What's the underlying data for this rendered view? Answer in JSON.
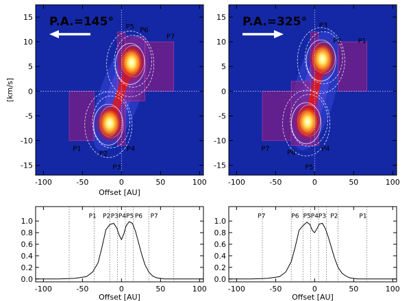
{
  "chart_data": [
    {
      "type": "heatmap",
      "title": "P.A.=145°",
      "arrow_direction": "left",
      "xlabel": "Offset [AU]",
      "ylabel": "[km/s]",
      "xlim": [
        -110,
        105
      ],
      "ylim": [
        -17,
        17.5
      ],
      "xticks": [
        -100,
        -50,
        0,
        50,
        100
      ],
      "yticks": [
        -15,
        -10,
        -5,
        0,
        5,
        10,
        15
      ],
      "peaks": [
        {
          "x": -15,
          "y": -6.5,
          "intensity": 1.0
        },
        {
          "x": 13,
          "y": 5.8,
          "intensity": 1.0
        }
      ],
      "regions": [
        {
          "x0": -67,
          "x1": -35,
          "y0": -10,
          "y1": 0
        },
        {
          "x0": -5,
          "x1": 5,
          "y0": -11,
          "y1": 12
        },
        {
          "x0": 5,
          "x1": 30,
          "y0": -2,
          "y1": 11
        },
        {
          "x0": 30,
          "x1": 67,
          "y0": 0,
          "y1": 10
        }
      ],
      "region_labels": [
        {
          "text": "P1",
          "x": -57,
          "y": -11.5
        },
        {
          "text": "P2",
          "x": -23,
          "y": -12.5
        },
        {
          "text": "P3",
          "x": -6,
          "y": -15.3
        },
        {
          "text": "P4",
          "x": 12,
          "y": -11.5
        },
        {
          "text": "P5",
          "x": 11,
          "y": 13.2
        },
        {
          "text": "P6",
          "x": 29,
          "y": 12.5
        },
        {
          "text": "P7",
          "x": 63,
          "y": 11.2
        }
      ]
    },
    {
      "type": "heatmap",
      "title": "P.A.=325°",
      "arrow_direction": "right",
      "xlabel": "",
      "ylabel": "",
      "xlim": [
        -110,
        105
      ],
      "ylim": [
        -17,
        17.5
      ],
      "xticks": [
        -100,
        -50,
        0,
        50,
        100
      ],
      "yticks": [
        -15,
        -10,
        -5,
        0,
        5,
        10,
        15
      ],
      "peaks": [
        {
          "x": -9,
          "y": -6.2,
          "intensity": 0.95
        },
        {
          "x": 10,
          "y": 6.5,
          "intensity": 1.0
        }
      ],
      "regions": [
        {
          "x0": -67,
          "x1": -30,
          "y0": -10,
          "y1": 0
        },
        {
          "x0": -30,
          "x1": -5,
          "y0": -11,
          "y1": 2
        },
        {
          "x0": -5,
          "x1": 5,
          "y0": -11,
          "y1": 12
        },
        {
          "x0": 30,
          "x1": 67,
          "y0": 0,
          "y1": 10
        }
      ],
      "region_labels": [
        {
          "text": "P7",
          "x": -63,
          "y": -11.5
        },
        {
          "text": "P6",
          "x": -30,
          "y": -12.3
        },
        {
          "text": "P5",
          "x": -7,
          "y": -15.3
        },
        {
          "text": "P4",
          "x": 14,
          "y": -11.5
        },
        {
          "text": "P3",
          "x": 11,
          "y": 13.5
        },
        {
          "text": "P2",
          "x": 29,
          "y": 10.3
        },
        {
          "text": "P1",
          "x": 61,
          "y": 10.3
        }
      ]
    },
    {
      "type": "line",
      "xlabel": "Offset [AU]",
      "ylabel": "",
      "xlim": [
        -110,
        105
      ],
      "ylim": [
        -0.05,
        1.25
      ],
      "xticks": [
        -100,
        -50,
        0,
        50,
        100
      ],
      "yticks": [
        0.0,
        0.2,
        0.4,
        0.6,
        0.8,
        1.0
      ],
      "x": [
        -110,
        -80,
        -60,
        -45,
        -37,
        -30,
        -25,
        -20,
        -15,
        -10,
        -6,
        -3,
        0,
        3,
        6,
        10,
        14,
        18,
        22,
        26,
        30,
        35,
        40,
        45,
        55,
        70,
        90,
        105
      ],
      "y": [
        0.0,
        0.0,
        0.01,
        0.04,
        0.12,
        0.28,
        0.55,
        0.85,
        0.94,
        0.96,
        0.88,
        0.76,
        0.68,
        0.78,
        0.92,
        0.99,
        0.96,
        0.82,
        0.62,
        0.42,
        0.25,
        0.12,
        0.05,
        0.02,
        0.0,
        0.0,
        0.0,
        0.0
      ],
      "vlines": [
        -67,
        -35,
        -15,
        -5,
        5,
        15,
        35,
        67
      ],
      "vline_labels": [
        {
          "text": "P1",
          "x": -37
        },
        {
          "text": "P2",
          "x": -19
        },
        {
          "text": "P3P4P5",
          "x": 1
        },
        {
          "text": "P6",
          "x": 22
        },
        {
          "text": "P7",
          "x": 42
        }
      ]
    },
    {
      "type": "line",
      "xlabel": "Offset [AU]",
      "ylabel": "",
      "xlim": [
        -110,
        105
      ],
      "ylim": [
        -0.05,
        1.25
      ],
      "xticks": [
        -100,
        -50,
        0,
        50,
        100
      ],
      "yticks": [
        0.0,
        0.2,
        0.4,
        0.6,
        0.8,
        1.0
      ],
      "x": [
        -110,
        -80,
        -60,
        -45,
        -37,
        -30,
        -25,
        -20,
        -15,
        -10,
        -6,
        -3,
        0,
        3,
        6,
        10,
        14,
        18,
        22,
        26,
        30,
        35,
        40,
        45,
        55,
        70,
        90,
        105
      ],
      "y": [
        0.0,
        0.0,
        0.01,
        0.04,
        0.12,
        0.3,
        0.55,
        0.84,
        0.92,
        0.98,
        0.94,
        0.84,
        0.8,
        0.87,
        0.95,
        0.96,
        0.86,
        0.7,
        0.52,
        0.34,
        0.2,
        0.1,
        0.05,
        0.02,
        0.0,
        0.0,
        0.0,
        0.0
      ],
      "vlines": [
        -67,
        -30,
        -15,
        -5,
        5,
        15,
        30,
        67
      ],
      "vline_labels": [
        {
          "text": "P7",
          "x": -68
        },
        {
          "text": "P6",
          "x": -25
        },
        {
          "text": "P5P4P3",
          "x": 0
        },
        {
          "text": "P2",
          "x": 25
        },
        {
          "text": "P1",
          "x": 62
        }
      ]
    }
  ]
}
